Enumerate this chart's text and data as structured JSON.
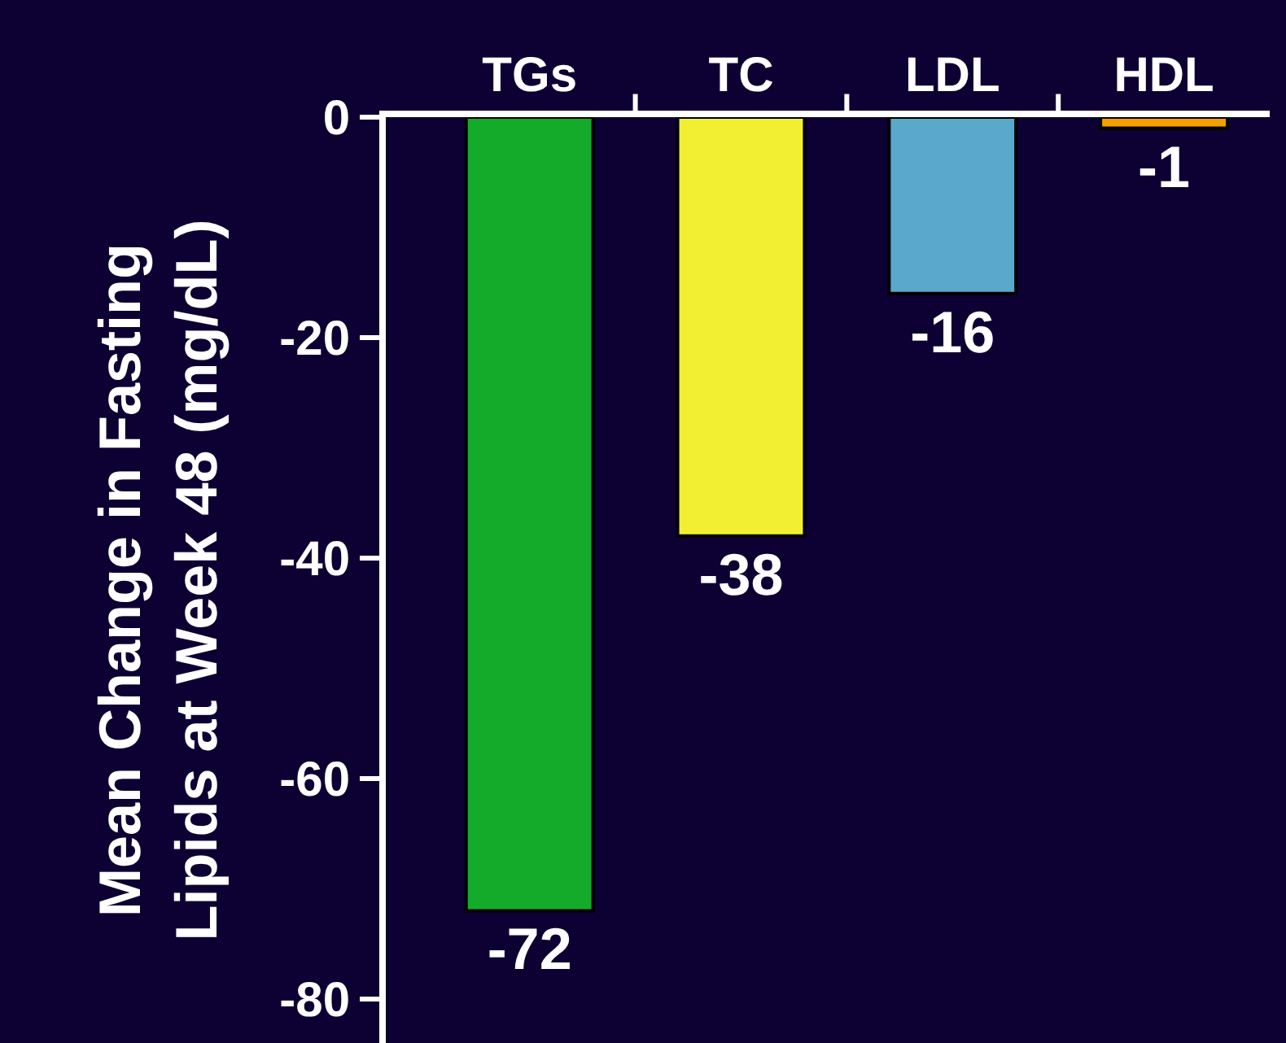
{
  "chart_data": {
    "type": "bar",
    "ylabel": "Mean Change in Fasting\nLipids at Week 48 (mg/dL)",
    "categories": [
      "TGs",
      "TC",
      "LDL",
      "HDL"
    ],
    "values": [
      -72,
      -38,
      -16,
      -1
    ],
    "colors": [
      "#14ab2a",
      "#f2ef33",
      "#5aa8cc",
      "#f5a000"
    ],
    "ylim": [
      -84,
      0
    ],
    "yticks": [
      0,
      -20,
      -40,
      -60,
      -80
    ],
    "data_labels": true,
    "grid": false,
    "legend": false
  }
}
